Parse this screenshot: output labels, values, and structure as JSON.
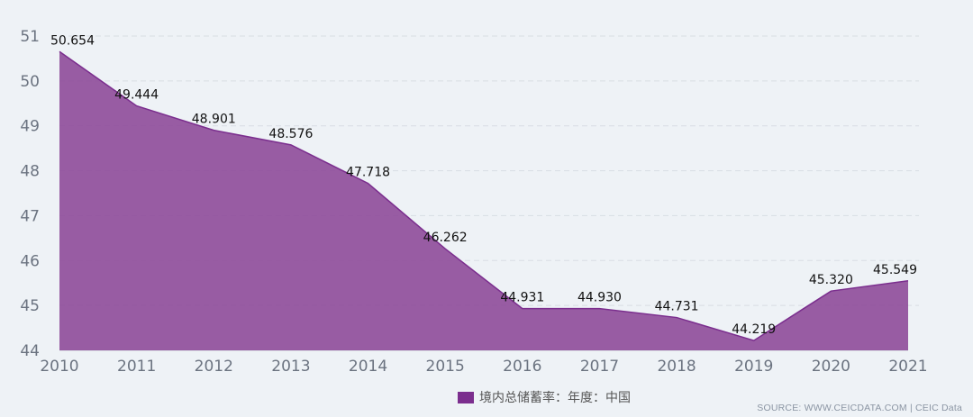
{
  "chart_data": {
    "type": "area",
    "x": [
      "2010",
      "2011",
      "2012",
      "2013",
      "2014",
      "2015",
      "2016",
      "2017",
      "2018",
      "2019",
      "2020",
      "2021"
    ],
    "series": [
      {
        "name": "境内总储蓄率：年度：中国",
        "values": [
          50.654,
          49.444,
          48.901,
          48.576,
          47.718,
          46.262,
          44.931,
          44.93,
          44.731,
          44.219,
          45.32,
          45.549
        ],
        "labels": [
          "50.654",
          "49.444",
          "48.901",
          "48.576",
          "47.718",
          "46.262",
          "44.931",
          "44.930",
          "44.731",
          "44.219",
          "45.320",
          "45.549"
        ]
      }
    ],
    "y_ticks": [
      "44",
      "45",
      "46",
      "47",
      "48",
      "49",
      "50",
      "51"
    ],
    "ylim": [
      44,
      51
    ],
    "grid": true,
    "legend_placement": "bottom-center",
    "colors": {
      "area_fill": "#8e4b9a",
      "line": "#7b2e8e",
      "grid": "#d8dde3",
      "tick_text": "#6b7380"
    }
  },
  "legend": {
    "label": "境内总储蓄率：年度：中国"
  },
  "source": "SOURCE: WWW.CEICDATA.COM | CEIC Data"
}
